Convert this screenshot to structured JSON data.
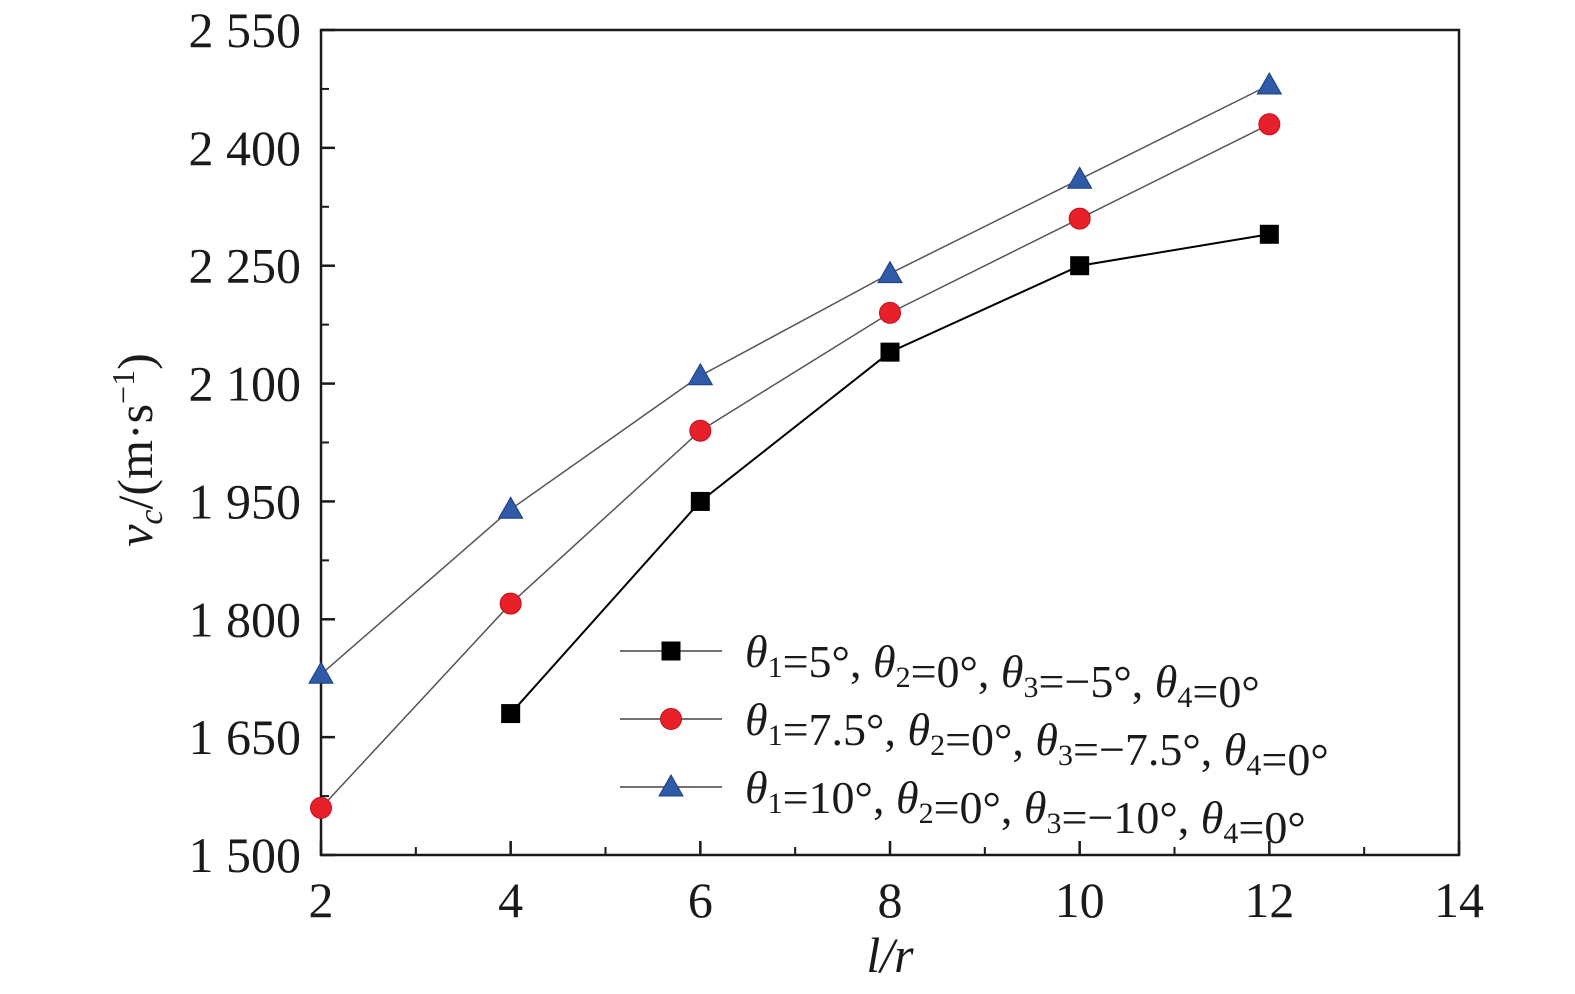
{
  "chart_data": {
    "type": "line",
    "xlabel": "l/r",
    "ylabel": "v_c/(m·s^-1)",
    "xlim": [
      2,
      14
    ],
    "ylim": [
      1500,
      2550
    ],
    "x_ticks": [
      2,
      4,
      6,
      8,
      10,
      12,
      14
    ],
    "y_ticks": [
      1500,
      1650,
      1800,
      1950,
      2100,
      2250,
      2400,
      2550
    ],
    "y_tick_labels": [
      "1 500",
      "1 650",
      "1 800",
      "1 950",
      "2 100",
      "2 250",
      "2 400",
      "2 550"
    ],
    "grid": false,
    "legend_position": "bottom-right",
    "series": [
      {
        "name": "θ1=5°, θ2=0°, θ3=−5°, θ4=0°",
        "marker": "square",
        "color": "#000000",
        "x": [
          4,
          6,
          8,
          10,
          12
        ],
        "y": [
          1680,
          1950,
          2140,
          2250,
          2290
        ]
      },
      {
        "name": "θ1=7.5°, θ2=0°, θ3=−7.5°, θ4=0°",
        "marker": "circle",
        "color": "#e8202a",
        "x": [
          2,
          4,
          6,
          8,
          10,
          12
        ],
        "y": [
          1560,
          1820,
          2040,
          2190,
          2310,
          2430
        ]
      },
      {
        "name": "θ1=10°, θ2=0°, θ3=−10°, θ4=0°",
        "marker": "triangle",
        "color": "#2e5aa8",
        "x": [
          2,
          4,
          6,
          8,
          10,
          12
        ],
        "y": [
          1730,
          1940,
          2110,
          2240,
          2360,
          2480
        ]
      }
    ]
  }
}
